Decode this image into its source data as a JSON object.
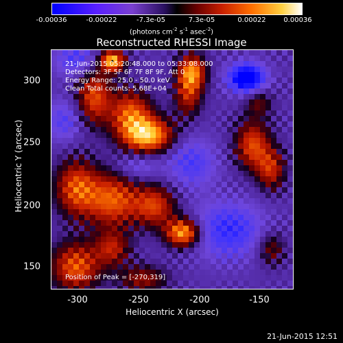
{
  "chart_data": {
    "type": "heatmap",
    "title": "Reconstructed RHESSI Image",
    "xlabel": "Heliocentric X (arcsec)",
    "ylabel": "Heliocentric Y (arcsec)",
    "xlim": [
      -320,
      -122
    ],
    "ylim": [
      132,
      328
    ],
    "x_ticks": [
      "-300",
      "-250",
      "-200",
      "-150"
    ],
    "y_ticks": [
      "150",
      "200",
      "250",
      "300"
    ],
    "colorbar": {
      "ticks": [
        "-0.00036",
        "-0.00022",
        "-7.3e-05",
        "7.3e-05",
        "0.00022",
        "0.00036"
      ],
      "units_parts": [
        "(photons cm",
        "-2",
        " s",
        "-1",
        " asec",
        "-2",
        ")"
      ],
      "range": [
        -0.00036,
        0.00036
      ]
    },
    "annotations": [
      "21-Jun-2015 05:20:48.000 to 05:33:08.000",
      "Detectors: 3F 5F 6F 7F 8F 9F, Att 0",
      "Energy Range: 25.0 - 50.0 keV",
      "Clean    Total counts: 5.68E+04"
    ],
    "peak_label": "Position of Peak = [-270,319]",
    "peak_position": [
      -270,
      319
    ],
    "blobs": [
      {
        "x": -270,
        "y": 319,
        "amp": 0.00036,
        "sx": 7,
        "sy": 6
      },
      {
        "x": -240,
        "y": 258,
        "amp": 0.00034,
        "sx": 14,
        "sy": 10
      },
      {
        "x": -255,
        "y": 275,
        "amp": 0.00026,
        "sx": 12,
        "sy": 14
      },
      {
        "x": -285,
        "y": 290,
        "amp": 0.00024,
        "sx": 10,
        "sy": 16
      },
      {
        "x": -212,
        "y": 178,
        "amp": 0.00034,
        "sx": 10,
        "sy": 8
      },
      {
        "x": -235,
        "y": 200,
        "amp": 0.00022,
        "sx": 12,
        "sy": 12
      },
      {
        "x": -270,
        "y": 205,
        "amp": 0.00026,
        "sx": 16,
        "sy": 16
      },
      {
        "x": -300,
        "y": 215,
        "amp": 0.00024,
        "sx": 12,
        "sy": 16
      },
      {
        "x": -300,
        "y": 150,
        "amp": 0.00026,
        "sx": 14,
        "sy": 14
      },
      {
        "x": -270,
        "y": 165,
        "amp": 0.00018,
        "sx": 10,
        "sy": 10
      },
      {
        "x": -245,
        "y": 140,
        "amp": 0.00016,
        "sx": 14,
        "sy": 8
      },
      {
        "x": -205,
        "y": 310,
        "amp": 0.0003,
        "sx": 8,
        "sy": 10
      },
      {
        "x": -208,
        "y": 290,
        "amp": 0.00018,
        "sx": 8,
        "sy": 12
      },
      {
        "x": -155,
        "y": 250,
        "amp": 0.00024,
        "sx": 10,
        "sy": 14
      },
      {
        "x": -140,
        "y": 230,
        "amp": 0.0002,
        "sx": 8,
        "sy": 12
      },
      {
        "x": -150,
        "y": 285,
        "amp": 0.00012,
        "sx": 8,
        "sy": 8
      },
      {
        "x": -140,
        "y": 165,
        "amp": 0.00014,
        "sx": 8,
        "sy": 10
      },
      {
        "x": -160,
        "y": 305,
        "amp": -0.00036,
        "sx": 10,
        "sy": 8
      },
      {
        "x": -175,
        "y": 180,
        "amp": -0.00018,
        "sx": 20,
        "sy": 16
      },
      {
        "x": -205,
        "y": 235,
        "amp": -0.00014,
        "sx": 14,
        "sy": 14
      },
      {
        "x": -300,
        "y": 320,
        "amp": -0.00014,
        "sx": 12,
        "sy": 10
      },
      {
        "x": -310,
        "y": 270,
        "amp": -0.00012,
        "sx": 10,
        "sy": 12
      },
      {
        "x": -250,
        "y": 232,
        "amp": -0.0001,
        "sx": 12,
        "sy": 8
      }
    ]
  },
  "timestamp": "21-Jun-2015 12:51"
}
